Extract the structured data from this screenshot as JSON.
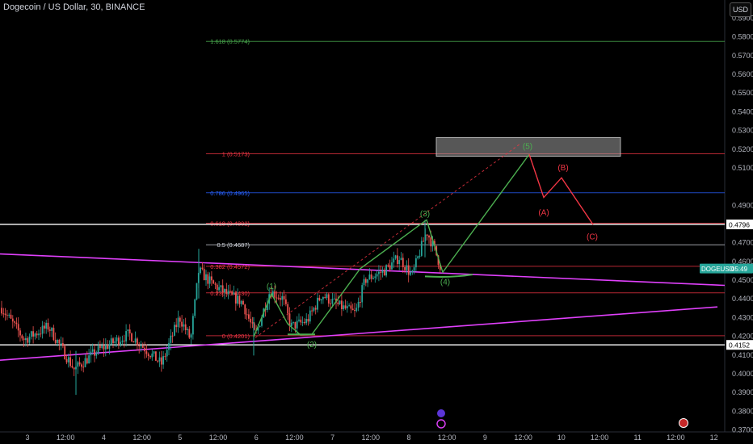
{
  "header": {
    "title": "Dogecoin / US Dollar, 30, BINANCE",
    "currency_button": "USD"
  },
  "colors": {
    "background": "#000000",
    "axis_text": "#b2b5be",
    "candle_up": "#26a69a",
    "candle_down": "#ef5350",
    "wave_green": "#4caf50",
    "wave_red": "#f23645",
    "trendline": "#e040fb",
    "price_tag": "#26a69a"
  },
  "chart_data": {
    "type": "candlestick",
    "symbol": "DOGEUSD",
    "interval": "30",
    "exchange": "BINANCE",
    "y_axis": {
      "range": [
        0.365,
        0.595
      ],
      "ticks": [
        "0.5900",
        "0.5800",
        "0.5700",
        "0.5600",
        "0.5500",
        "0.5400",
        "0.5300",
        "0.5200",
        "0.5100",
        "0.4900",
        "0.4800",
        "0.4700",
        "0.4600",
        "0.4500",
        "0.4400",
        "0.4300",
        "0.4200",
        "0.4100",
        "0.4000",
        "0.3900",
        "0.3800",
        "0.3700"
      ]
    },
    "x_axis": {
      "ticks": [
        "3",
        "12:00",
        "4",
        "12:00",
        "5",
        "12:00",
        "6",
        "12:00",
        "7",
        "12:00",
        "8",
        "12:00",
        "9",
        "12:00",
        "10",
        "12:00",
        "11",
        "12:00",
        "12"
      ]
    },
    "price_labels": [
      {
        "label": "0.4796",
        "value": 0.4796,
        "style": "white"
      },
      {
        "label": "0.4152",
        "value": 0.4152,
        "style": "white"
      },
      {
        "label": "DOGEUSD",
        "countdown": "05:49",
        "value": 0.456,
        "style": "green"
      }
    ],
    "fib_levels": [
      {
        "label": "1.618 (0.5774)",
        "value": 0.5774,
        "color": "#4caf50"
      },
      {
        "label": "1 (0.5173)",
        "value": 0.5173,
        "color": "#f23645"
      },
      {
        "label": "0.786 (0.4965)",
        "value": 0.4965,
        "color": "#2962ff"
      },
      {
        "label": "0.618 (0.4802)",
        "value": 0.4802,
        "color": "#f23645"
      },
      {
        "label": "0.5 (0.4687)",
        "value": 0.4687,
        "color": "#d1d4dc"
      },
      {
        "label": "0.382 (0.4572)",
        "value": 0.4572,
        "color": "#f23645"
      },
      {
        "label": "0.236 (0.4430)",
        "value": 0.443,
        "color": "#f23645"
      },
      {
        "label": "0 (0.4201)",
        "value": 0.4201,
        "color": "#f23645"
      }
    ],
    "horizontal_lines": [
      0.4796,
      0.4152
    ],
    "target_zone": {
      "from": 0.516,
      "to": 0.526
    },
    "wave_labels": [
      {
        "text": "(1)",
        "color": "green"
      },
      {
        "text": "(2)",
        "color": "green"
      },
      {
        "text": "(3)",
        "color": "green"
      },
      {
        "text": "(4)",
        "color": "green"
      },
      {
        "text": "(5)",
        "color": "green"
      },
      {
        "text": "(A)",
        "color": "red"
      },
      {
        "text": "(B)",
        "color": "red"
      },
      {
        "text": "(C)",
        "color": "red"
      }
    ]
  }
}
